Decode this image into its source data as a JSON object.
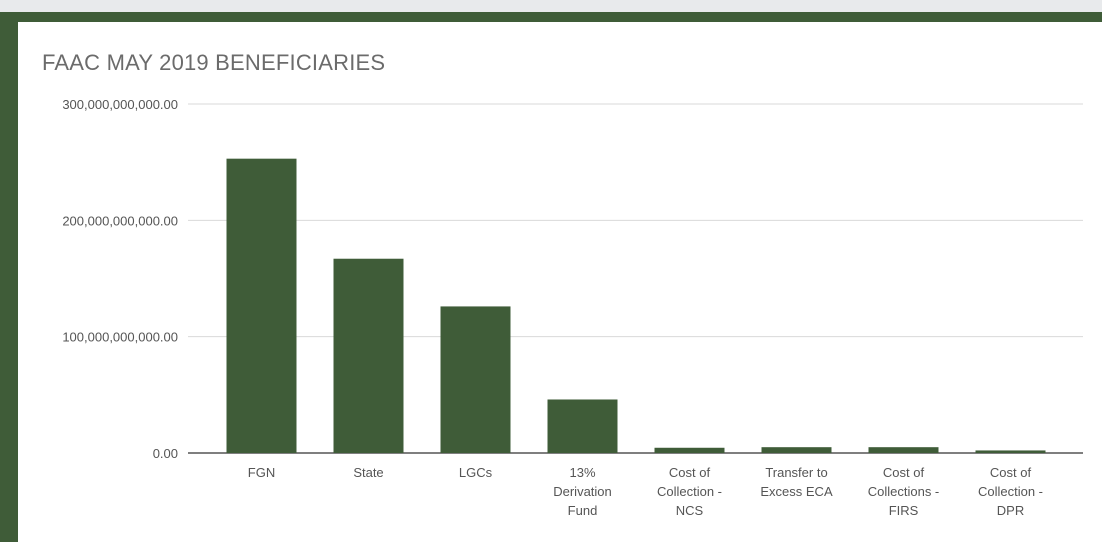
{
  "colors": {
    "frame": "#3f5c38",
    "bar": "#3f5c38",
    "grid": "#d9d9d9",
    "axis": "#333333"
  },
  "chart_data": {
    "type": "bar",
    "title": "FAAC MAY 2019 BENEFICIARIES",
    "xlabel": "",
    "ylabel": "",
    "ylim": [
      0,
      300000000000
    ],
    "grid": true,
    "yticks": [
      {
        "value": 0,
        "label": "0.00"
      },
      {
        "value": 100000000000,
        "label": "100,000,000,000.00"
      },
      {
        "value": 200000000000,
        "label": "200,000,000,000.00"
      },
      {
        "value": 300000000000,
        "label": "300,000,000,000.00"
      }
    ],
    "categories": [
      [
        "FGN"
      ],
      [
        "State"
      ],
      [
        "LGCs"
      ],
      [
        "13%",
        "Derivation",
        "Fund"
      ],
      [
        "Cost of",
        "Collection -",
        "NCS"
      ],
      [
        "Transfer to",
        "Excess ECA"
      ],
      [
        "Cost of",
        "Collections -",
        "FIRS"
      ],
      [
        "Cost of",
        "Collection -",
        "DPR"
      ]
    ],
    "values": [
      253000000000,
      167000000000,
      126000000000,
      46000000000,
      4500000000,
      5000000000,
      5000000000,
      2200000000
    ]
  }
}
